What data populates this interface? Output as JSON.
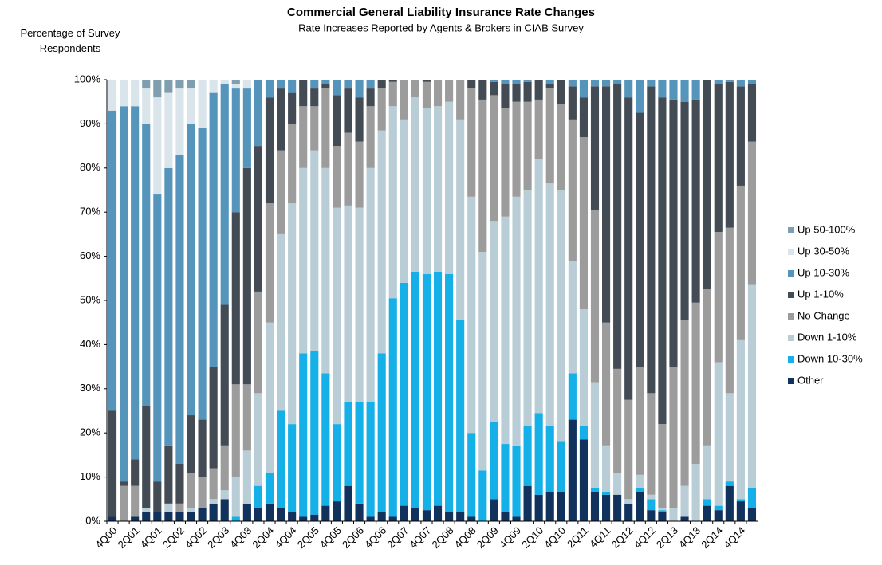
{
  "chart_data": {
    "type": "stacked_bar",
    "title": "Commercial General Liability Insurance Rate Changes",
    "subtitle": "Rate Increases Reported by Agents & Brokers in CIAB Survey",
    "y_label": "Percentage of Survey\nRespondents",
    "categories": [
      "4Q00",
      null,
      "2Q01",
      null,
      "4Q01",
      null,
      "2Q02",
      null,
      "4Q02",
      null,
      "2Q03",
      null,
      "4Q03",
      null,
      "2Q04",
      null,
      "4Q04",
      null,
      "2Q05",
      null,
      "4Q05",
      null,
      "2Q06",
      null,
      "4Q06",
      null,
      "2Q07",
      null,
      "4Q07",
      null,
      "2Q08",
      null,
      "4Q08",
      null,
      "2Q09",
      null,
      "4Q09",
      null,
      "2Q10",
      null,
      "4Q10",
      null,
      "2Q11",
      null,
      "4Q11",
      null,
      "2Q12",
      null,
      "4Q12",
      null,
      "2Q13",
      null,
      "4Q13",
      null,
      "2Q14",
      null,
      "4Q14",
      null
    ],
    "series": [
      {
        "name": "Other",
        "color": "#12325e",
        "values": [
          1,
          0,
          1,
          2,
          2,
          2,
          2,
          2,
          3,
          4,
          5,
          0,
          4,
          3,
          4,
          3,
          2,
          1,
          1.5,
          3.5,
          4.5,
          8,
          4,
          1,
          2,
          1,
          3.5,
          3,
          2.5,
          3.5,
          2,
          2,
          1,
          0,
          5,
          2,
          1,
          8,
          6,
          6.5,
          6.5,
          23,
          18.5,
          6.5,
          6,
          6,
          4,
          6.5,
          2.5,
          2,
          0,
          1,
          0,
          3.5,
          2.5,
          8,
          4.5,
          3
        ]
      },
      {
        "name": "Down 10-30%",
        "color": "#15b0e8",
        "values": [
          0,
          0,
          0,
          0,
          0,
          0,
          0,
          0,
          0,
          0,
          0,
          1,
          0,
          5,
          7,
          22,
          20,
          37,
          37,
          30,
          17.5,
          19,
          23,
          26,
          36,
          49.5,
          50.5,
          53.5,
          53.5,
          53,
          54,
          43.5,
          19,
          11.5,
          17.5,
          15.5,
          16,
          13.5,
          18.5,
          15,
          11.5,
          10.5,
          3,
          1,
          0.5,
          0,
          0,
          1,
          2.5,
          0.5,
          0,
          0,
          0,
          1.5,
          1,
          1,
          0.5,
          4.5
        ]
      },
      {
        "name": "Down 1-10%",
        "color": "#b8cdd6",
        "values": [
          0,
          0,
          0,
          1,
          0,
          2,
          0,
          1,
          0,
          1,
          2,
          9,
          12,
          21,
          34,
          40,
          50,
          42,
          45.5,
          46.5,
          49,
          44.5,
          44,
          53,
          50.5,
          43.5,
          37,
          39.5,
          37.5,
          37.5,
          39,
          45.5,
          53.5,
          49.5,
          45.5,
          51.5,
          56.5,
          53.5,
          57.5,
          55,
          57,
          25.5,
          26.5,
          24,
          10.5,
          5,
          1,
          3,
          1,
          0.5,
          3,
          7,
          13,
          12,
          32.5,
          20,
          36,
          46
        ]
      },
      {
        "name": "No Change",
        "color": "#9c9c9c",
        "values": [
          0,
          8,
          7,
          0,
          0,
          0,
          2,
          8,
          7,
          7,
          10,
          21,
          15,
          23,
          27,
          19,
          18,
          14,
          10,
          18,
          14,
          16.5,
          15,
          14,
          9.5,
          5.5,
          9,
          4,
          6,
          6,
          5,
          9,
          24.5,
          34.5,
          28.5,
          24.5,
          21.5,
          20,
          13.5,
          21.5,
          19.5,
          32,
          39,
          39,
          28,
          23.5,
          22.5,
          24.5,
          23,
          19,
          32,
          37.5,
          36.5,
          35.5,
          29.5,
          37.5,
          35,
          32.5
        ]
      },
      {
        "name": "Up 1-10%",
        "color": "#434b55",
        "values": [
          24,
          1,
          6,
          23,
          7,
          13,
          9,
          13,
          13,
          23,
          32,
          39,
          49,
          33,
          24,
          14,
          7,
          6,
          4,
          1,
          11.5,
          10,
          10,
          4,
          2,
          0.5,
          0,
          0,
          0.5,
          0,
          0,
          0,
          2,
          4.5,
          3,
          5.5,
          4,
          4.5,
          4.5,
          1,
          5.5,
          7.5,
          9,
          28,
          53.5,
          64.5,
          68.5,
          57.5,
          69.5,
          74,
          60.5,
          49.5,
          46,
          47.5,
          33.5,
          33,
          22.5,
          13
        ]
      },
      {
        "name": "Up 10-30%",
        "color": "#5594bb",
        "values": [
          68,
          85,
          80,
          64,
          65,
          63,
          70,
          66,
          66,
          62,
          50,
          28,
          18,
          15,
          4,
          2,
          3,
          0,
          2,
          1,
          3.5,
          2,
          4,
          2,
          0,
          0,
          0,
          0,
          0,
          0,
          0,
          0,
          0,
          0,
          0.5,
          1,
          1,
          0.5,
          0,
          1,
          0,
          1.5,
          4,
          1.5,
          1.5,
          1,
          4,
          7.5,
          1.5,
          4,
          4.5,
          5,
          4.5,
          0,
          1,
          0.5,
          1.5,
          1
        ]
      },
      {
        "name": "Up 30-50%",
        "color": "#d9e5ea",
        "values": [
          7,
          6,
          6,
          8,
          22,
          17,
          15,
          8,
          11,
          3,
          1,
          1,
          2,
          0,
          0,
          0,
          0,
          0,
          0,
          0,
          0,
          0,
          0,
          0,
          0,
          0,
          0,
          0,
          0,
          0,
          0,
          0,
          0,
          0,
          0,
          0,
          0,
          0,
          0,
          0,
          0,
          0,
          0,
          0,
          0,
          0,
          0,
          0,
          0,
          0,
          0,
          0,
          0,
          0,
          0,
          0,
          0,
          0
        ]
      },
      {
        "name": "Up 50-100%",
        "color": "#7f9fb1",
        "values": [
          0,
          0,
          0,
          2,
          4,
          3,
          2,
          2,
          0,
          0,
          0,
          1,
          0,
          0,
          0,
          0,
          0,
          0,
          0,
          0,
          0,
          0,
          0,
          0,
          0,
          0,
          0,
          0,
          0,
          0,
          0,
          0,
          0,
          0,
          0,
          0,
          0,
          0,
          0,
          0,
          0,
          0,
          0,
          0,
          0,
          0,
          0,
          0,
          0,
          0,
          0,
          0,
          0,
          0,
          0,
          0,
          0,
          0
        ]
      }
    ],
    "ylim": [
      0,
      100
    ],
    "yticks": [
      {
        "value": 0,
        "label": "0%"
      },
      {
        "value": 10,
        "label": "10%"
      },
      {
        "value": 20,
        "label": "20%"
      },
      {
        "value": 30,
        "label": "30%"
      },
      {
        "value": 40,
        "label": "40%"
      },
      {
        "value": 50,
        "label": "50%"
      },
      {
        "value": 60,
        "label": "60%"
      },
      {
        "value": 70,
        "label": "70%"
      },
      {
        "value": 80,
        "label": "80%"
      },
      {
        "value": 90,
        "label": "90%"
      },
      {
        "value": 100,
        "label": "100%"
      }
    ],
    "grid": false,
    "legend": "right"
  }
}
